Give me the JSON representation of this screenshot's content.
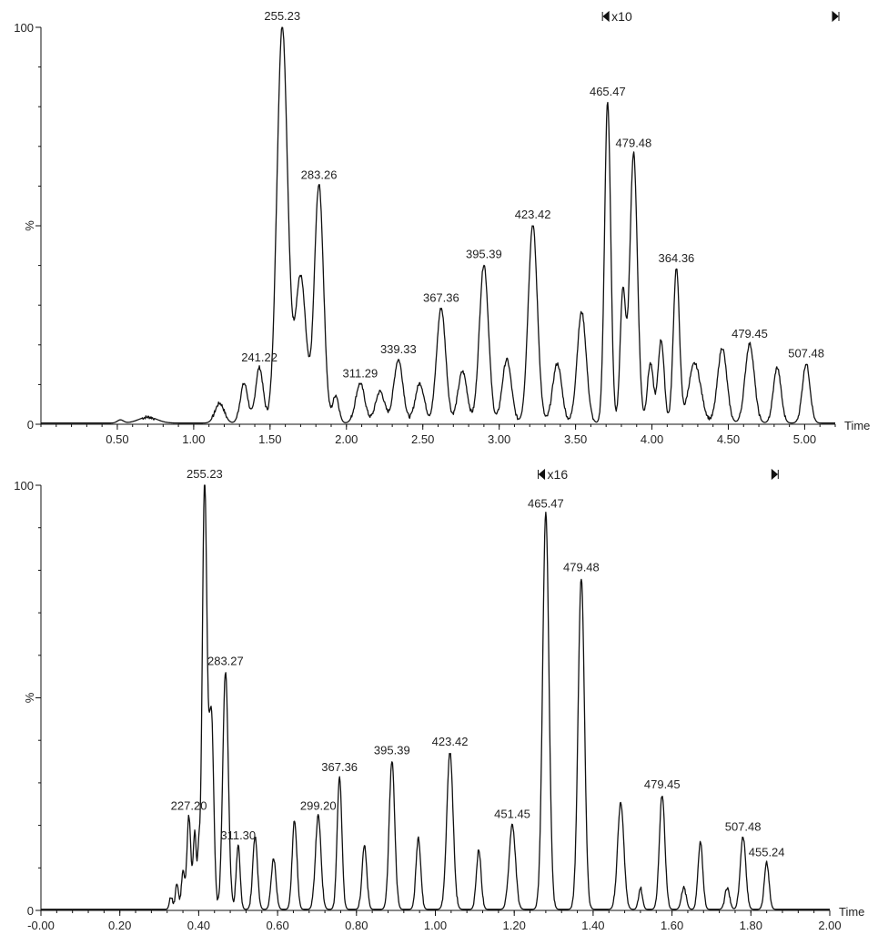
{
  "chart_data": [
    {
      "type": "line",
      "title": "",
      "xlabel": "Time",
      "ylabel": "%",
      "xlim": [
        0,
        5.2
      ],
      "ylim": [
        0,
        100
      ],
      "x_ticks": [
        "0.50",
        "1.00",
        "1.50",
        "2.00",
        "2.50",
        "3.00",
        "3.50",
        "4.00",
        "4.50",
        "5.00"
      ],
      "y_ticks": [
        "0",
        "100"
      ],
      "magnification": {
        "label": "x10",
        "start": 3.7,
        "end": 5.2,
        "color": "#b0683a"
      },
      "peaks": [
        {
          "x": 1.33,
          "y": 10,
          "w": 0.025
        },
        {
          "x": 1.43,
          "y": 14,
          "w": 0.025
        },
        {
          "x": 1.58,
          "y": 100,
          "w": 0.035
        },
        {
          "x": 1.7,
          "y": 37,
          "w": 0.035
        },
        {
          "x": 1.82,
          "y": 60,
          "w": 0.03
        },
        {
          "x": 1.93,
          "y": 7,
          "w": 0.02
        },
        {
          "x": 2.09,
          "y": 10,
          "w": 0.03
        },
        {
          "x": 2.22,
          "y": 8,
          "w": 0.03
        },
        {
          "x": 2.34,
          "y": 16,
          "w": 0.03
        },
        {
          "x": 2.48,
          "y": 10,
          "w": 0.03
        },
        {
          "x": 2.62,
          "y": 29,
          "w": 0.03
        },
        {
          "x": 2.76,
          "y": 13,
          "w": 0.03
        },
        {
          "x": 2.9,
          "y": 40,
          "w": 0.03
        },
        {
          "x": 3.05,
          "y": 16,
          "w": 0.03
        },
        {
          "x": 3.22,
          "y": 50,
          "w": 0.03
        },
        {
          "x": 3.38,
          "y": 15,
          "w": 0.03
        },
        {
          "x": 3.54,
          "y": 28,
          "w": 0.03
        },
        {
          "x": 3.71,
          "y": 81,
          "w": 0.02
        },
        {
          "x": 3.81,
          "y": 33,
          "w": 0.018
        },
        {
          "x": 3.88,
          "y": 68,
          "w": 0.025
        },
        {
          "x": 3.99,
          "y": 15,
          "w": 0.02
        },
        {
          "x": 4.06,
          "y": 21,
          "w": 0.02
        },
        {
          "x": 4.16,
          "y": 39,
          "w": 0.02
        },
        {
          "x": 4.28,
          "y": 15,
          "w": 0.04
        },
        {
          "x": 4.46,
          "y": 19,
          "w": 0.03
        },
        {
          "x": 4.64,
          "y": 20,
          "w": 0.03
        },
        {
          "x": 4.82,
          "y": 14,
          "w": 0.025
        },
        {
          "x": 5.01,
          "y": 15,
          "w": 0.025
        },
        {
          "x": 1.17,
          "y": 5,
          "w": 0.03
        },
        {
          "x": 0.7,
          "y": 1.5,
          "w": 0.06
        },
        {
          "x": 0.52,
          "y": 0.8,
          "w": 0.02
        }
      ],
      "annotations": [
        {
          "label": "255.23",
          "x": 1.58,
          "y": 100
        },
        {
          "label": "283.26",
          "x": 1.82,
          "y": 60
        },
        {
          "label": "241.22",
          "x": 1.43,
          "y": 14
        },
        {
          "label": "311.29",
          "x": 2.09,
          "y": 10
        },
        {
          "label": "339.33",
          "x": 2.34,
          "y": 16
        },
        {
          "label": "367.36",
          "x": 2.62,
          "y": 29
        },
        {
          "label": "395.39",
          "x": 2.9,
          "y": 40
        },
        {
          "label": "423.42",
          "x": 3.22,
          "y": 50
        },
        {
          "label": "465.47",
          "x": 3.71,
          "y": 81
        },
        {
          "label": "479.48",
          "x": 3.88,
          "y": 68
        },
        {
          "label": "364.36",
          "x": 4.16,
          "y": 39
        },
        {
          "label": "479.45",
          "x": 4.64,
          "y": 20
        },
        {
          "label": "507.48",
          "x": 5.01,
          "y": 15
        }
      ]
    },
    {
      "type": "line",
      "title": "",
      "xlabel": "Time",
      "ylabel": "%",
      "xlim": [
        0,
        2.0
      ],
      "ylim": [
        0,
        100
      ],
      "x_ticks": [
        "-0.00",
        "0.20",
        "0.40",
        "0.60",
        "0.80",
        "1.00",
        "1.20",
        "1.40",
        "1.60",
        "1.80",
        "2.00"
      ],
      "y_ticks": [
        "0",
        "100"
      ],
      "magnification": {
        "label": "x16",
        "start": 1.27,
        "end": 1.86,
        "color": "#b0683a"
      },
      "peaks": [
        {
          "x": 0.33,
          "y": 3,
          "w": 0.004
        },
        {
          "x": 0.345,
          "y": 6,
          "w": 0.004
        },
        {
          "x": 0.36,
          "y": 9,
          "w": 0.004
        },
        {
          "x": 0.375,
          "y": 22,
          "w": 0.005
        },
        {
          "x": 0.39,
          "y": 18,
          "w": 0.004
        },
        {
          "x": 0.4,
          "y": 12,
          "w": 0.003
        },
        {
          "x": 0.415,
          "y": 100,
          "w": 0.006
        },
        {
          "x": 0.432,
          "y": 46,
          "w": 0.006
        },
        {
          "x": 0.468,
          "y": 56,
          "w": 0.007
        },
        {
          "x": 0.5,
          "y": 15,
          "w": 0.005
        },
        {
          "x": 0.543,
          "y": 17,
          "w": 0.006
        },
        {
          "x": 0.59,
          "y": 12,
          "w": 0.006
        },
        {
          "x": 0.643,
          "y": 21,
          "w": 0.006
        },
        {
          "x": 0.703,
          "y": 22,
          "w": 0.007
        },
        {
          "x": 0.757,
          "y": 31,
          "w": 0.006
        },
        {
          "x": 0.82,
          "y": 15,
          "w": 0.006
        },
        {
          "x": 0.89,
          "y": 35,
          "w": 0.007
        },
        {
          "x": 0.957,
          "y": 17,
          "w": 0.006
        },
        {
          "x": 1.037,
          "y": 37,
          "w": 0.008
        },
        {
          "x": 1.11,
          "y": 14,
          "w": 0.006
        },
        {
          "x": 1.195,
          "y": 20,
          "w": 0.008
        },
        {
          "x": 1.28,
          "y": 93,
          "w": 0.008
        },
        {
          "x": 1.37,
          "y": 78,
          "w": 0.008
        },
        {
          "x": 1.47,
          "y": 25,
          "w": 0.008
        },
        {
          "x": 1.52,
          "y": 5,
          "w": 0.005
        },
        {
          "x": 1.575,
          "y": 27,
          "w": 0.007
        },
        {
          "x": 1.63,
          "y": 5,
          "w": 0.006
        },
        {
          "x": 1.672,
          "y": 16,
          "w": 0.006
        },
        {
          "x": 1.74,
          "y": 5,
          "w": 0.006
        },
        {
          "x": 1.78,
          "y": 17,
          "w": 0.007
        },
        {
          "x": 1.84,
          "y": 11,
          "w": 0.006
        }
      ],
      "annotations": [
        {
          "label": "255.23",
          "x": 0.415,
          "y": 100
        },
        {
          "label": "283.27",
          "x": 0.468,
          "y": 56
        },
        {
          "label": "227.20",
          "x": 0.375,
          "y": 22
        },
        {
          "label": "311.30",
          "x": 0.5,
          "y": 15
        },
        {
          "label": "299.20",
          "x": 0.703,
          "y": 22
        },
        {
          "label": "367.36",
          "x": 0.757,
          "y": 31
        },
        {
          "label": "395.39",
          "x": 0.89,
          "y": 35
        },
        {
          "label": "423.42",
          "x": 1.037,
          "y": 37
        },
        {
          "label": "451.45",
          "x": 1.195,
          "y": 20
        },
        {
          "label": "465.47",
          "x": 1.28,
          "y": 93
        },
        {
          "label": "479.48",
          "x": 1.37,
          "y": 78
        },
        {
          "label": "479.45",
          "x": 1.575,
          "y": 27
        },
        {
          "label": "507.48",
          "x": 1.78,
          "y": 17
        },
        {
          "label": "455.24",
          "x": 1.84,
          "y": 11
        }
      ]
    }
  ]
}
